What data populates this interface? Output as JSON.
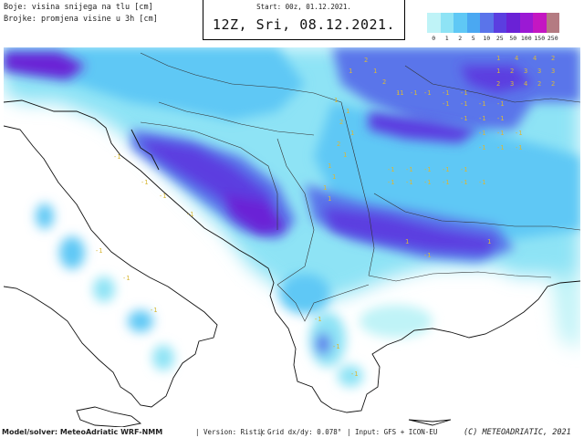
{
  "legend": {
    "line1": "Boje: visina snijega na tlu [cm]",
    "line2": "Brojke: promjena visine u 3h [cm]"
  },
  "header": {
    "start": "Start: 00z, 01.12.2021.",
    "valid": "12Z, Sri, 08.12.2021."
  },
  "colorbar": {
    "labels": [
      "0",
      "1",
      "2",
      "5",
      "10",
      "25",
      "50",
      "100",
      "150",
      "250"
    ],
    "colors": [
      "#bff3f7",
      "#8ee3f5",
      "#5fc8f5",
      "#4aa8f2",
      "#5a74ea",
      "#5b3ee0",
      "#6a22d6",
      "#9b19d4",
      "#c417c2",
      "#b47b82"
    ]
  },
  "footer": {
    "model": "Model/solver: MeteoAdriatic WRF-NMM",
    "version": "| Version: Ristic",
    "grid": "| Grid dx/dy: 0.078°",
    "input": "| Input: GFS + ICON-EU",
    "credit": "(C) METEOADRIATIC, 2021"
  },
  "map": {
    "region": "Balkan peninsula and Italy",
    "snow_change_labels": [
      "1",
      "2",
      "1",
      "2",
      "1",
      "1",
      "4",
      "4",
      "2",
      "1",
      "2",
      "3",
      "3",
      "3",
      "2",
      "3",
      "4",
      "2",
      "2",
      "-1",
      "-1",
      "-1",
      "-1",
      "-1",
      "-1",
      "-1",
      "-1",
      "-1",
      "1",
      "1",
      "2",
      "1",
      "2",
      "1",
      "1",
      "1",
      "1",
      "1",
      "-1",
      "-1",
      "-1",
      "-1",
      "-1",
      "-1",
      "-1",
      "-1",
      "-1",
      "-1",
      "-1",
      "-1",
      "-1",
      "-1",
      "-1",
      "-1",
      "-1",
      "-1",
      "-1",
      "-1",
      "1",
      "1",
      "-1",
      "-1",
      "-1",
      "-1",
      "-1",
      "-1",
      "-1",
      "-1",
      "-1",
      "-1",
      "-1"
    ]
  }
}
